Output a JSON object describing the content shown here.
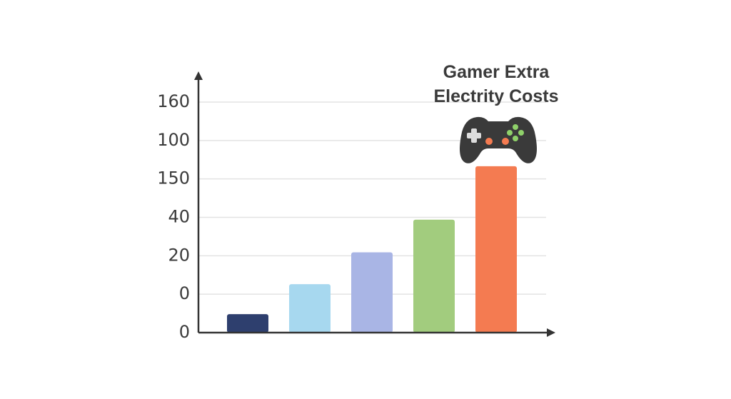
{
  "chart_data": {
    "type": "bar",
    "title": "Gamer Extra\nElectrity Costs",
    "categories": [
      null,
      null,
      null,
      null,
      null
    ],
    "values": [
      0.48,
      1.26,
      2.09,
      2.94,
      4.33
    ],
    "colors": [
      "#2e3f6e",
      "#a7d8ef",
      "#a9b5e5",
      "#a2cc7e",
      "#f47b51"
    ],
    "ylim": [
      0,
      6
    ],
    "yticks": [
      {
        "value": 0,
        "label": "0"
      },
      {
        "value": 1,
        "label": "0"
      },
      {
        "value": 2,
        "label": "20"
      },
      {
        "value": 3,
        "label": "40"
      },
      {
        "value": 4,
        "label": "150"
      },
      {
        "value": 5,
        "label": "100"
      },
      {
        "value": 6,
        "label": "160"
      }
    ],
    "grid": true
  }
}
